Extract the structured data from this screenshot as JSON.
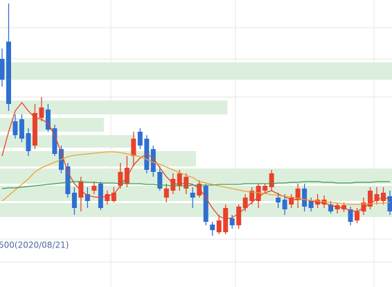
{
  "chart_data": {
    "type": "candlestick",
    "categories": [
      null,
      null,
      null,
      null,
      null,
      null,
      null,
      null,
      null,
      null,
      null,
      null,
      null,
      null,
      null,
      null,
      null,
      null,
      null,
      null,
      null,
      null,
      null,
      null,
      null,
      null,
      null,
      null,
      null,
      null,
      null,
      null,
      null,
      null,
      null,
      null,
      null,
      null,
      null,
      null,
      null,
      null,
      null,
      null,
      null,
      null,
      null,
      null,
      null,
      null,
      null,
      null,
      null,
      null,
      null,
      null,
      null,
      null,
      null,
      null
    ],
    "open": [
      329,
      354,
      239,
      242,
      222,
      204,
      244,
      256,
      229,
      199,
      174,
      136,
      129,
      134,
      139,
      149,
      124,
      124,
      146,
      149,
      189,
      224,
      214,
      199,
      166,
      129,
      139,
      146,
      142,
      136,
      132,
      146,
      90,
      79,
      79,
      99,
      89,
      114,
      124,
      124,
      139,
      144,
      129,
      126,
      119,
      126,
      142,
      124,
      119,
      119,
      119,
      112,
      112,
      112,
      96,
      109,
      116,
      124,
      124,
      131
    ],
    "high": [
      344,
      409,
      249,
      249,
      229,
      264,
      274,
      264,
      234,
      204,
      179,
      144,
      159,
      144,
      152,
      152,
      139,
      144,
      179,
      189,
      224,
      229,
      219,
      204,
      174,
      149,
      164,
      169,
      164,
      144,
      154,
      149,
      94,
      104,
      119,
      104,
      119,
      134,
      144,
      149,
      149,
      169,
      136,
      134,
      134,
      149,
      149,
      129,
      134,
      132,
      124,
      122,
      122,
      116,
      114,
      129,
      144,
      144,
      144,
      139
    ],
    "low": [
      289,
      254,
      214,
      209,
      189,
      199,
      239,
      224,
      189,
      164,
      129,
      104,
      109,
      114,
      134,
      111,
      119,
      122,
      142,
      144,
      174,
      199,
      164,
      159,
      139,
      122,
      134,
      139,
      134,
      114,
      129,
      89,
      74,
      76,
      76,
      84,
      84,
      109,
      119,
      114,
      134,
      139,
      114,
      104,
      114,
      114,
      109,
      109,
      114,
      114,
      106,
      106,
      108,
      89,
      92,
      104,
      112,
      119,
      119,
      104
    ],
    "close": [
      299,
      264,
      219,
      214,
      196,
      251,
      259,
      227,
      192,
      169,
      134,
      114,
      152,
      124,
      146,
      114,
      134,
      136,
      166,
      172,
      214,
      204,
      169,
      166,
      142,
      142,
      156,
      164,
      159,
      129,
      149,
      94,
      82,
      96,
      114,
      89,
      116,
      129,
      139,
      146,
      146,
      164,
      122,
      112,
      129,
      142,
      116,
      114,
      126,
      126,
      109,
      118,
      118,
      94,
      109,
      122,
      139,
      134,
      136,
      109
    ],
    "up_color": "#e8412c",
    "down_color": "#2f6fd1",
    "moving_averages": [
      {
        "color": "#e8412c",
        "values": [
          189,
          224,
          254,
          266,
          254,
          244,
          242,
          236,
          219,
          194,
          166,
          149,
          139,
          132,
          130,
          129,
          131,
          134,
          146,
          159,
          176,
          186,
          192,
          186,
          172,
          159,
          149,
          148,
          150,
          148,
          142,
          129,
          114,
          102,
          98,
          100,
          106,
          114,
          122,
          130,
          136,
          139,
          134,
          130,
          126,
          126,
          127,
          124,
          122,
          121,
          118,
          115,
          114,
          110,
          109,
          114,
          121,
          126,
          129,
          127
        ]
      },
      {
        "color": "#f0a030",
        "values": [
          124,
          132,
          140,
          148,
          156,
          166,
          172,
          176,
          180,
          184,
          188,
          190,
          191,
          192,
          193,
          194,
          195,
          195,
          194,
          192,
          190,
          188,
          184,
          180,
          177,
          173,
          169,
          165,
          161,
          158,
          152,
          150,
          148,
          146,
          144,
          142,
          140,
          138,
          137,
          136,
          135,
          133,
          132,
          131,
          130,
          128,
          126,
          125,
          124,
          123,
          122,
          121,
          120,
          119,
          119,
          120,
          120,
          121,
          121,
          122
        ]
      },
      {
        "color": "#3a9a4a",
        "values": [
          142,
          143,
          143,
          144,
          145,
          146,
          147,
          148,
          149,
          150,
          151,
          152,
          152,
          151,
          151,
          150,
          150,
          150,
          149,
          149,
          149,
          149,
          148,
          148,
          147,
          147,
          146,
          146,
          146,
          147,
          147,
          147,
          147,
          148,
          148,
          148,
          148,
          149,
          149,
          149,
          149,
          149,
          150,
          150,
          151,
          151,
          152,
          152,
          152,
          151,
          151,
          150,
          150,
          150,
          151,
          151,
          151,
          152,
          152,
          152
        ]
      }
    ],
    "volume_profile": {
      "color": "#dcefdc",
      "xlim": [
        0,
        100
      ],
      "low": [
        299,
        249,
        224,
        201,
        174,
        149,
        124,
        101
      ],
      "high": [
        324,
        269,
        244,
        219,
        196,
        171,
        146,
        121
      ],
      "values": [
        100,
        58,
        26.5,
        34.6,
        50,
        100,
        100,
        100
      ]
    },
    "annotation": "500(2020/08/21)",
    "ylim": [
      0,
      414
    ]
  }
}
